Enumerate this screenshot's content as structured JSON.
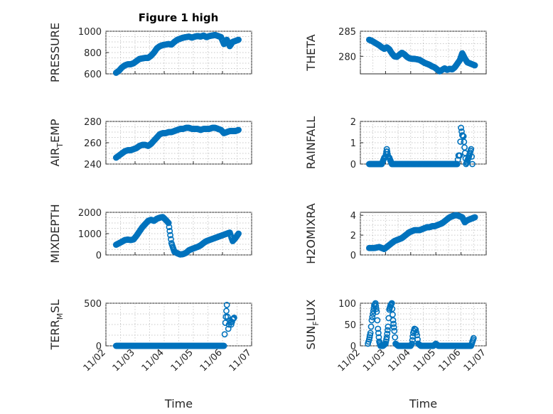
{
  "figure_title": "Figure 1 high",
  "colors": {
    "marker": "#0072BD",
    "axes": "#262626",
    "grid": "#b7b7b7"
  },
  "chart_data": [
    {
      "type": "scatter",
      "ylabel": "PRESSURE",
      "title": "Figure 1 high",
      "xlim": [
        0,
        5
      ],
      "ylim": [
        600,
        1000
      ],
      "yticks": [
        600,
        800,
        1000
      ],
      "xticks": [
        0,
        1,
        2,
        3,
        4,
        5
      ],
      "xticklabels": [],
      "xlabel": "",
      "grid": true,
      "series": [
        {
          "x": [
            0.35,
            0.45,
            0.55,
            0.65,
            0.75,
            0.85,
            0.95,
            1.05,
            1.15,
            1.25,
            1.35,
            1.45,
            1.55,
            1.65,
            1.75,
            1.85,
            1.95,
            2.05,
            2.15,
            2.25,
            2.35,
            2.45,
            2.55,
            2.65,
            2.75,
            2.85,
            2.95,
            3.05,
            3.15,
            3.25,
            3.35,
            3.45,
            3.55,
            3.65,
            3.75,
            3.85,
            3.95,
            4.05,
            4.15,
            4.25,
            4.35,
            4.45,
            4.55
          ],
          "y": [
            610,
            630,
            660,
            680,
            690,
            690,
            700,
            720,
            740,
            745,
            750,
            750,
            770,
            800,
            840,
            860,
            870,
            875,
            880,
            875,
            900,
            920,
            930,
            940,
            945,
            950,
            940,
            950,
            955,
            950,
            960,
            945,
            955,
            960,
            965,
            955,
            945,
            880,
            920,
            860,
            900,
            910,
            920
          ]
        }
      ]
    },
    {
      "type": "scatter",
      "ylabel": "THETA",
      "xlim": [
        0,
        5
      ],
      "ylim": [
        276.5,
        285
      ],
      "yticks": [
        280,
        285
      ],
      "xticks": [
        0,
        1,
        2,
        3,
        4,
        5
      ],
      "xticklabels": [],
      "xlabel": "",
      "grid": true,
      "series": [
        {
          "x": [
            0.35,
            0.45,
            0.55,
            0.65,
            0.75,
            0.85,
            0.95,
            1.05,
            1.15,
            1.25,
            1.35,
            1.45,
            1.55,
            1.65,
            1.75,
            1.85,
            1.95,
            2.05,
            2.15,
            2.25,
            2.35,
            2.45,
            2.55,
            2.65,
            2.75,
            2.85,
            2.95,
            3.05,
            3.15,
            3.25,
            3.35,
            3.45,
            3.55,
            3.65,
            3.75,
            3.85,
            3.95,
            4.05,
            4.15,
            4.25,
            4.35,
            4.45,
            4.55
          ],
          "y": [
            283.3,
            283.1,
            282.8,
            282.5,
            282.2,
            281.8,
            281.5,
            281.8,
            281.4,
            280.6,
            280.0,
            279.9,
            280.3,
            280.7,
            280.4,
            279.9,
            279.6,
            279.5,
            279.5,
            279.4,
            279.3,
            279.0,
            278.7,
            278.5,
            278.3,
            278.0,
            277.8,
            277.4,
            277.0,
            277.3,
            277.6,
            277.3,
            277.5,
            277.4,
            277.8,
            278.5,
            279.2,
            280.6,
            279.6,
            278.8,
            278.6,
            278.4,
            278.2
          ]
        }
      ]
    },
    {
      "type": "scatter",
      "ylabel": "AIR_TEMP",
      "xlim": [
        0,
        5
      ],
      "ylim": [
        240,
        280
      ],
      "yticks": [
        240,
        260,
        280
      ],
      "xticks": [
        0,
        1,
        2,
        3,
        4,
        5
      ],
      "xticklabels": [],
      "xlabel": "",
      "grid": true,
      "series": [
        {
          "x": [
            0.35,
            0.45,
            0.55,
            0.65,
            0.75,
            0.85,
            0.95,
            1.05,
            1.15,
            1.25,
            1.35,
            1.45,
            1.55,
            1.65,
            1.75,
            1.85,
            1.95,
            2.05,
            2.15,
            2.25,
            2.35,
            2.45,
            2.55,
            2.65,
            2.75,
            2.85,
            2.95,
            3.05,
            3.15,
            3.25,
            3.35,
            3.45,
            3.55,
            3.65,
            3.75,
            3.85,
            3.95,
            4.05,
            4.15,
            4.25,
            4.35,
            4.45,
            4.55
          ],
          "y": [
            246,
            248,
            250,
            252,
            253,
            253,
            254,
            255,
            257,
            258,
            258,
            257,
            259,
            262,
            265,
            268,
            269,
            269,
            270,
            270,
            271,
            272,
            273,
            273,
            274,
            274,
            273,
            273,
            273,
            272,
            273,
            273,
            273,
            274,
            274,
            273,
            272,
            269,
            270,
            271,
            271,
            271,
            272
          ]
        }
      ]
    },
    {
      "type": "scatter",
      "ylabel": "RAINFALL",
      "xlim": [
        0,
        5
      ],
      "ylim": [
        0,
        2
      ],
      "yticks": [
        0,
        1,
        2
      ],
      "xticks": [
        0,
        1,
        2,
        3,
        4,
        5
      ],
      "xticklabels": [],
      "xlabel": "",
      "grid": true,
      "series": [
        {
          "x": [
            0.35,
            0.45,
            0.55,
            0.65,
            0.75,
            0.85,
            0.95,
            1.0,
            1.05,
            1.1,
            1.15,
            1.25,
            1.35,
            1.45,
            1.55,
            1.65,
            1.75,
            1.85,
            1.95,
            2.05,
            2.15,
            2.25,
            2.35,
            2.45,
            2.55,
            2.65,
            2.75,
            2.85,
            2.95,
            3.05,
            3.15,
            3.25,
            3.35,
            3.45,
            3.55,
            3.65,
            3.75,
            3.85,
            3.9,
            3.95,
            4.0,
            4.05,
            4.1,
            4.2,
            4.3,
            4.4,
            4.45
          ],
          "y": [
            0,
            0,
            0,
            0,
            0,
            0,
            0.3,
            0.35,
            0.7,
            0.35,
            0.3,
            0,
            0,
            0,
            0,
            0,
            0,
            0,
            0,
            0,
            0,
            0,
            0,
            0,
            0,
            0,
            0,
            0,
            0,
            0,
            0,
            0,
            0,
            0,
            0,
            0,
            0,
            0,
            0.4,
            0.4,
            1.7,
            1.35,
            1.3,
            0,
            0.3,
            0.7,
            0
          ]
        }
      ]
    },
    {
      "type": "scatter",
      "ylabel": "MIXDEPTH",
      "xlim": [
        0,
        5
      ],
      "ylim": [
        0,
        2000
      ],
      "yticks": [
        0,
        1000,
        2000
      ],
      "xticks": [
        0,
        1,
        2,
        3,
        4,
        5
      ],
      "xticklabels": [],
      "xlabel": "",
      "grid": true,
      "series": [
        {
          "x": [
            0.35,
            0.45,
            0.55,
            0.65,
            0.75,
            0.85,
            0.95,
            1.05,
            1.15,
            1.25,
            1.35,
            1.45,
            1.55,
            1.65,
            1.75,
            1.85,
            1.95,
            2.05,
            2.15,
            2.25,
            2.35,
            2.45,
            2.55,
            2.65,
            2.75,
            2.85,
            2.95,
            3.05,
            3.15,
            3.25,
            3.35,
            3.45,
            3.55,
            3.65,
            3.75,
            3.85,
            3.95,
            4.05,
            4.15,
            4.25,
            4.35,
            4.45,
            4.55
          ],
          "y": [
            480,
            550,
            620,
            700,
            720,
            700,
            730,
            900,
            1100,
            1300,
            1450,
            1600,
            1650,
            1600,
            1700,
            1750,
            1780,
            1650,
            1500,
            550,
            150,
            80,
            20,
            40,
            100,
            220,
            280,
            330,
            380,
            450,
            560,
            650,
            700,
            750,
            800,
            850,
            900,
            950,
            1000,
            1050,
            650,
            800,
            1000
          ]
        }
      ]
    },
    {
      "type": "scatter",
      "ylabel": "H2OMIXRA",
      "xlim": [
        0,
        5
      ],
      "ylim": [
        0,
        4.3
      ],
      "yticks": [
        0,
        2,
        4
      ],
      "xticks": [
        0,
        1,
        2,
        3,
        4,
        5
      ],
      "xticklabels": [],
      "xlabel": "",
      "grid": true,
      "series": [
        {
          "x": [
            0.35,
            0.45,
            0.55,
            0.65,
            0.75,
            0.85,
            0.95,
            1.05,
            1.15,
            1.25,
            1.35,
            1.45,
            1.55,
            1.65,
            1.75,
            1.85,
            1.95,
            2.05,
            2.15,
            2.25,
            2.35,
            2.45,
            2.55,
            2.65,
            2.75,
            2.85,
            2.95,
            3.05,
            3.15,
            3.25,
            3.35,
            3.45,
            3.55,
            3.65,
            3.75,
            3.85,
            3.95,
            4.05,
            4.15,
            4.25,
            4.35,
            4.45,
            4.55
          ],
          "y": [
            0.7,
            0.7,
            0.7,
            0.75,
            0.8,
            0.7,
            0.6,
            0.8,
            1.0,
            1.2,
            1.4,
            1.5,
            1.6,
            1.7,
            1.9,
            2.1,
            2.3,
            2.4,
            2.5,
            2.5,
            2.5,
            2.6,
            2.7,
            2.8,
            2.8,
            2.9,
            2.9,
            3.0,
            3.1,
            3.2,
            3.4,
            3.6,
            3.8,
            3.9,
            4.0,
            4.0,
            3.9,
            3.8,
            3.3,
            3.5,
            3.6,
            3.7,
            3.8
          ]
        }
      ]
    },
    {
      "type": "scatter",
      "ylabel": "TERR_MSL",
      "xlim": [
        0,
        5
      ],
      "ylim": [
        0,
        500
      ],
      "yticks": [
        0,
        500
      ],
      "xticks": [
        0,
        1,
        2,
        3,
        4,
        5
      ],
      "xticklabels": [
        "11/02",
        "11/03",
        "11/04",
        "11/05",
        "11/06",
        "11/07"
      ],
      "xlabel": "Time",
      "grid": true,
      "series": [
        {
          "x": [
            0.35,
            0.45,
            0.55,
            0.65,
            0.75,
            0.85,
            0.95,
            1.05,
            1.15,
            1.25,
            1.35,
            1.45,
            1.55,
            1.65,
            1.75,
            1.85,
            1.95,
            2.05,
            2.15,
            2.25,
            2.35,
            2.45,
            2.55,
            2.65,
            2.75,
            2.85,
            2.95,
            3.05,
            3.15,
            3.25,
            3.35,
            3.45,
            3.55,
            3.65,
            3.75,
            3.85,
            3.95,
            4.05,
            4.1,
            4.15,
            4.2,
            4.25,
            4.3,
            4.35,
            4.4
          ],
          "y": [
            0,
            0,
            0,
            0,
            0,
            0,
            0,
            0,
            0,
            0,
            0,
            0,
            0,
            0,
            0,
            0,
            0,
            0,
            0,
            0,
            0,
            0,
            0,
            0,
            0,
            0,
            0,
            0,
            0,
            0,
            0,
            0,
            0,
            0,
            0,
            0,
            0,
            0,
            270,
            480,
            200,
            300,
            250,
            310,
            330
          ]
        }
      ]
    },
    {
      "type": "scatter",
      "ylabel": "SUN_FLUX",
      "xlim": [
        0,
        5
      ],
      "ylim": [
        0,
        100
      ],
      "yticks": [
        0,
        50,
        100
      ],
      "xticks": [
        0,
        1,
        2,
        3,
        4,
        5
      ],
      "xticklabels": [
        "11/02",
        "11/03",
        "11/04",
        "11/05",
        "11/06",
        "11/07"
      ],
      "xlabel": "Time",
      "grid": true,
      "series": [
        {
          "x": [
            0.3,
            0.35,
            0.4,
            0.45,
            0.5,
            0.55,
            0.6,
            0.65,
            0.7,
            0.75,
            0.8,
            0.9,
            1.0,
            1.05,
            1.1,
            1.15,
            1.2,
            1.25,
            1.3,
            1.35,
            1.4,
            1.5,
            1.6,
            1.7,
            1.8,
            1.9,
            2.0,
            2.05,
            2.1,
            2.15,
            2.2,
            2.25,
            2.3,
            2.4,
            2.5,
            2.6,
            2.7,
            2.8,
            2.9,
            3.0,
            3.1,
            3.2,
            3.3,
            3.4,
            3.5,
            3.6,
            3.7,
            3.8,
            3.9,
            4.0,
            4.1,
            4.2,
            4.3,
            4.4,
            4.5
          ],
          "y": [
            5,
            15,
            30,
            60,
            75,
            95,
            100,
            80,
            40,
            10,
            0,
            0,
            5,
            20,
            45,
            85,
            95,
            100,
            60,
            35,
            5,
            0,
            0,
            0,
            0,
            0,
            0,
            5,
            30,
            40,
            38,
            25,
            5,
            0,
            0,
            0,
            0,
            0,
            0,
            5,
            0,
            0,
            0,
            0,
            0,
            0,
            0,
            0,
            0,
            0,
            0,
            0,
            0,
            0,
            18
          ]
        }
      ]
    }
  ]
}
